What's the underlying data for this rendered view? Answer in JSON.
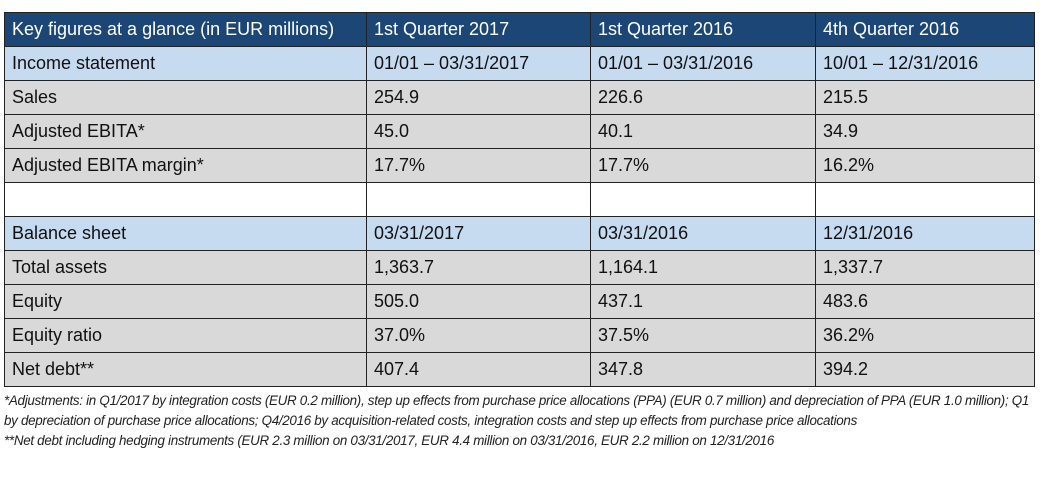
{
  "header": [
    "Key figures at a glance (in EUR millions)",
    "1st Quarter 2017",
    "1st Quarter 2016",
    "4th Quarter 2016"
  ],
  "rows": [
    {
      "type": "sec",
      "cells": [
        "Income statement",
        "01/01 – 03/31/2017",
        "01/01 – 03/31/2016",
        "10/01 – 12/31/2016"
      ]
    },
    {
      "type": "row",
      "cells": [
        "Sales",
        "254.9",
        "226.6",
        "215.5"
      ]
    },
    {
      "type": "row",
      "cells": [
        "Adjusted EBITA*",
        "45.0",
        "40.1",
        "34.9"
      ]
    },
    {
      "type": "row",
      "cells": [
        "Adjusted EBITA margin*",
        "17.7%",
        "17.7%",
        "16.2%"
      ]
    },
    {
      "type": "empty",
      "cells": [
        "",
        "",
        "",
        ""
      ]
    },
    {
      "type": "sec",
      "cells": [
        "Balance sheet",
        "03/31/2017",
        "03/31/2016",
        "12/31/2016"
      ]
    },
    {
      "type": "row",
      "cells": [
        "Total assets",
        "1,363.7",
        "1,164.1",
        "1,337.7"
      ]
    },
    {
      "type": "row",
      "cells": [
        "Equity",
        "505.0",
        "437.1",
        "483.6"
      ]
    },
    {
      "type": "row",
      "cells": [
        "Equity ratio",
        "37.0%",
        "37.5%",
        "36.2%"
      ]
    },
    {
      "type": "row",
      "cells": [
        "Net debt**",
        "407.4",
        "347.8",
        "394.2"
      ]
    }
  ],
  "footnotes": {
    "adjustments": "*Adjustments: in Q1/2017 by integration costs (EUR 0.2 million), step up effects from purchase price allocations (PPA) (EUR 0.7 million) and depreciation of PPA (EUR 1.0 million); Q1 by depreciation of purchase price allocations; Q4/2016 by acquisition-related costs, integration costs and step up effects from purchase price allocations",
    "net_debt": "**Net debt including hedging instruments (EUR 2.3 million on 03/31/2017, EUR 4.4 million on 03/31/2016, EUR 2.2 million on 12/31/2016"
  }
}
